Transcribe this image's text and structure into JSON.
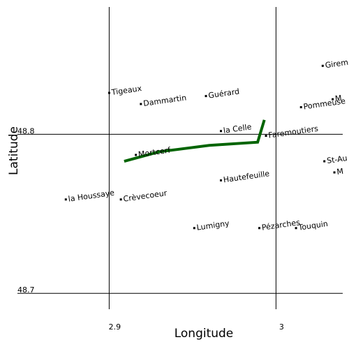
{
  "map": {
    "xlabel": "Longitude",
    "ylabel": "Latitude",
    "x_ticks": [
      {
        "label": "2.9",
        "value": 2.9
      },
      {
        "label": "3",
        "value": 3.0
      }
    ],
    "y_ticks": [
      {
        "label": "48.8",
        "value": 48.8
      },
      {
        "label": "48.7",
        "value": 48.7
      }
    ],
    "view": {
      "lon_min": 2.845,
      "lon_max": 3.04,
      "lat_min": 48.69,
      "lat_max": 48.88
    },
    "grid": true,
    "colors": {
      "route": "#006400",
      "grid": "#000000",
      "place_marker": "#000000"
    },
    "places": [
      {
        "name": "Girem",
        "lon": 3.028,
        "lat": 48.843
      },
      {
        "name": "Tigeaux",
        "lon": 2.9,
        "lat": 48.826
      },
      {
        "name": "Guérard",
        "lon": 2.958,
        "lat": 48.824
      },
      {
        "name": "Dammartin",
        "lon": 2.919,
        "lat": 48.819
      },
      {
        "name": "M",
        "lon": 3.034,
        "lat": 48.822
      },
      {
        "name": "Pommeuse",
        "lon": 3.015,
        "lat": 48.817
      },
      {
        "name": "la Celle",
        "lon": 2.967,
        "lat": 48.802
      },
      {
        "name": "Faremoutiers",
        "lon": 2.994,
        "lat": 48.799
      },
      {
        "name": "Mortcerf",
        "lon": 2.916,
        "lat": 48.787
      },
      {
        "name": "St-Au",
        "lon": 3.029,
        "lat": 48.783
      },
      {
        "name": "M",
        "lon": 3.035,
        "lat": 48.776
      },
      {
        "name": "Hautefeuille",
        "lon": 2.967,
        "lat": 48.771
      },
      {
        "name": "la Houssaye",
        "lon": 2.874,
        "lat": 48.759
      },
      {
        "name": "Crèvecoeur",
        "lon": 2.907,
        "lat": 48.759
      },
      {
        "name": "Lumigny",
        "lon": 2.951,
        "lat": 48.741
      },
      {
        "name": "Pézarches",
        "lon": 2.99,
        "lat": 48.741
      },
      {
        "name": "Touquin",
        "lon": 3.012,
        "lat": 48.741
      }
    ],
    "route": [
      {
        "lon": 2.909,
        "lat": 48.783
      },
      {
        "lon": 2.93,
        "lat": 48.789
      },
      {
        "lon": 2.96,
        "lat": 48.793
      },
      {
        "lon": 2.989,
        "lat": 48.795
      },
      {
        "lon": 2.993,
        "lat": 48.809
      }
    ]
  }
}
